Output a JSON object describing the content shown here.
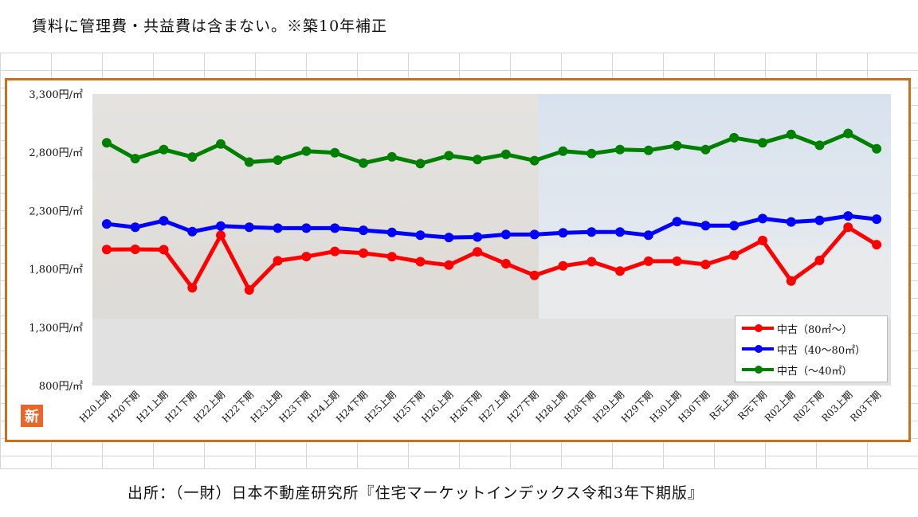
{
  "header": {
    "note": "賃料に管理費・共益費は含まない。※築10年補正"
  },
  "source": {
    "note": "出所：（一財）日本不動産研究所『住宅マーケットインデックス令和3年下期版』"
  },
  "logo": {
    "text": "新"
  },
  "colors": {
    "frame": "#c8701e",
    "red": "#ff0000",
    "blue": "#0000ff",
    "green": "#008000"
  },
  "chart_data": {
    "type": "line",
    "ylim": [
      800,
      3300
    ],
    "yticks": [
      800,
      1300,
      1800,
      2300,
      2800,
      3300
    ],
    "ytick_labels": [
      "800円/㎡",
      "1,300円/㎡",
      "1,800円/㎡",
      "2,300円/㎡",
      "2,800円/㎡",
      "3,300円/㎡"
    ],
    "categories": [
      "H20上期",
      "H20下期",
      "H21上期",
      "H21下期",
      "H22上期",
      "H22下期",
      "H23上期",
      "H23下期",
      "H24上期",
      "H24下期",
      "H25上期",
      "H25下期",
      "H26上期",
      "H26下期",
      "H27上期",
      "H27下期",
      "H28上期",
      "H28下期",
      "H29上期",
      "H29下期",
      "H30上期",
      "H30下期",
      "R元上期",
      "R元下期",
      "R02上期",
      "R02下期",
      "R03上期",
      "R03下期"
    ],
    "legend_position": "bottom-right",
    "series": [
      {
        "name": "中古（80㎡～）",
        "color": "#ff0000",
        "values": [
          1966,
          1968,
          1965,
          1638,
          2088,
          1620,
          1870,
          1906,
          1950,
          1935,
          1905,
          1862,
          1833,
          1947,
          1845,
          1745,
          1826,
          1862,
          1782,
          1866,
          1866,
          1838,
          1917,
          2044,
          1697,
          1873,
          2158,
          2008
        ]
      },
      {
        "name": "中古（40～80㎡）",
        "color": "#0000ff",
        "values": [
          2186,
          2157,
          2213,
          2120,
          2168,
          2157,
          2150,
          2150,
          2150,
          2131,
          2113,
          2089,
          2070,
          2074,
          2095,
          2095,
          2110,
          2117,
          2117,
          2089,
          2206,
          2171,
          2171,
          2232,
          2203,
          2217,
          2254,
          2227
        ]
      },
      {
        "name": "中古（～40㎡）",
        "color": "#008000",
        "values": [
          2882,
          2746,
          2824,
          2760,
          2871,
          2716,
          2733,
          2810,
          2796,
          2708,
          2761,
          2703,
          2771,
          2738,
          2782,
          2729,
          2810,
          2789,
          2824,
          2817,
          2858,
          2824,
          2925,
          2882,
          2953,
          2860,
          2962,
          2830
        ]
      }
    ]
  }
}
